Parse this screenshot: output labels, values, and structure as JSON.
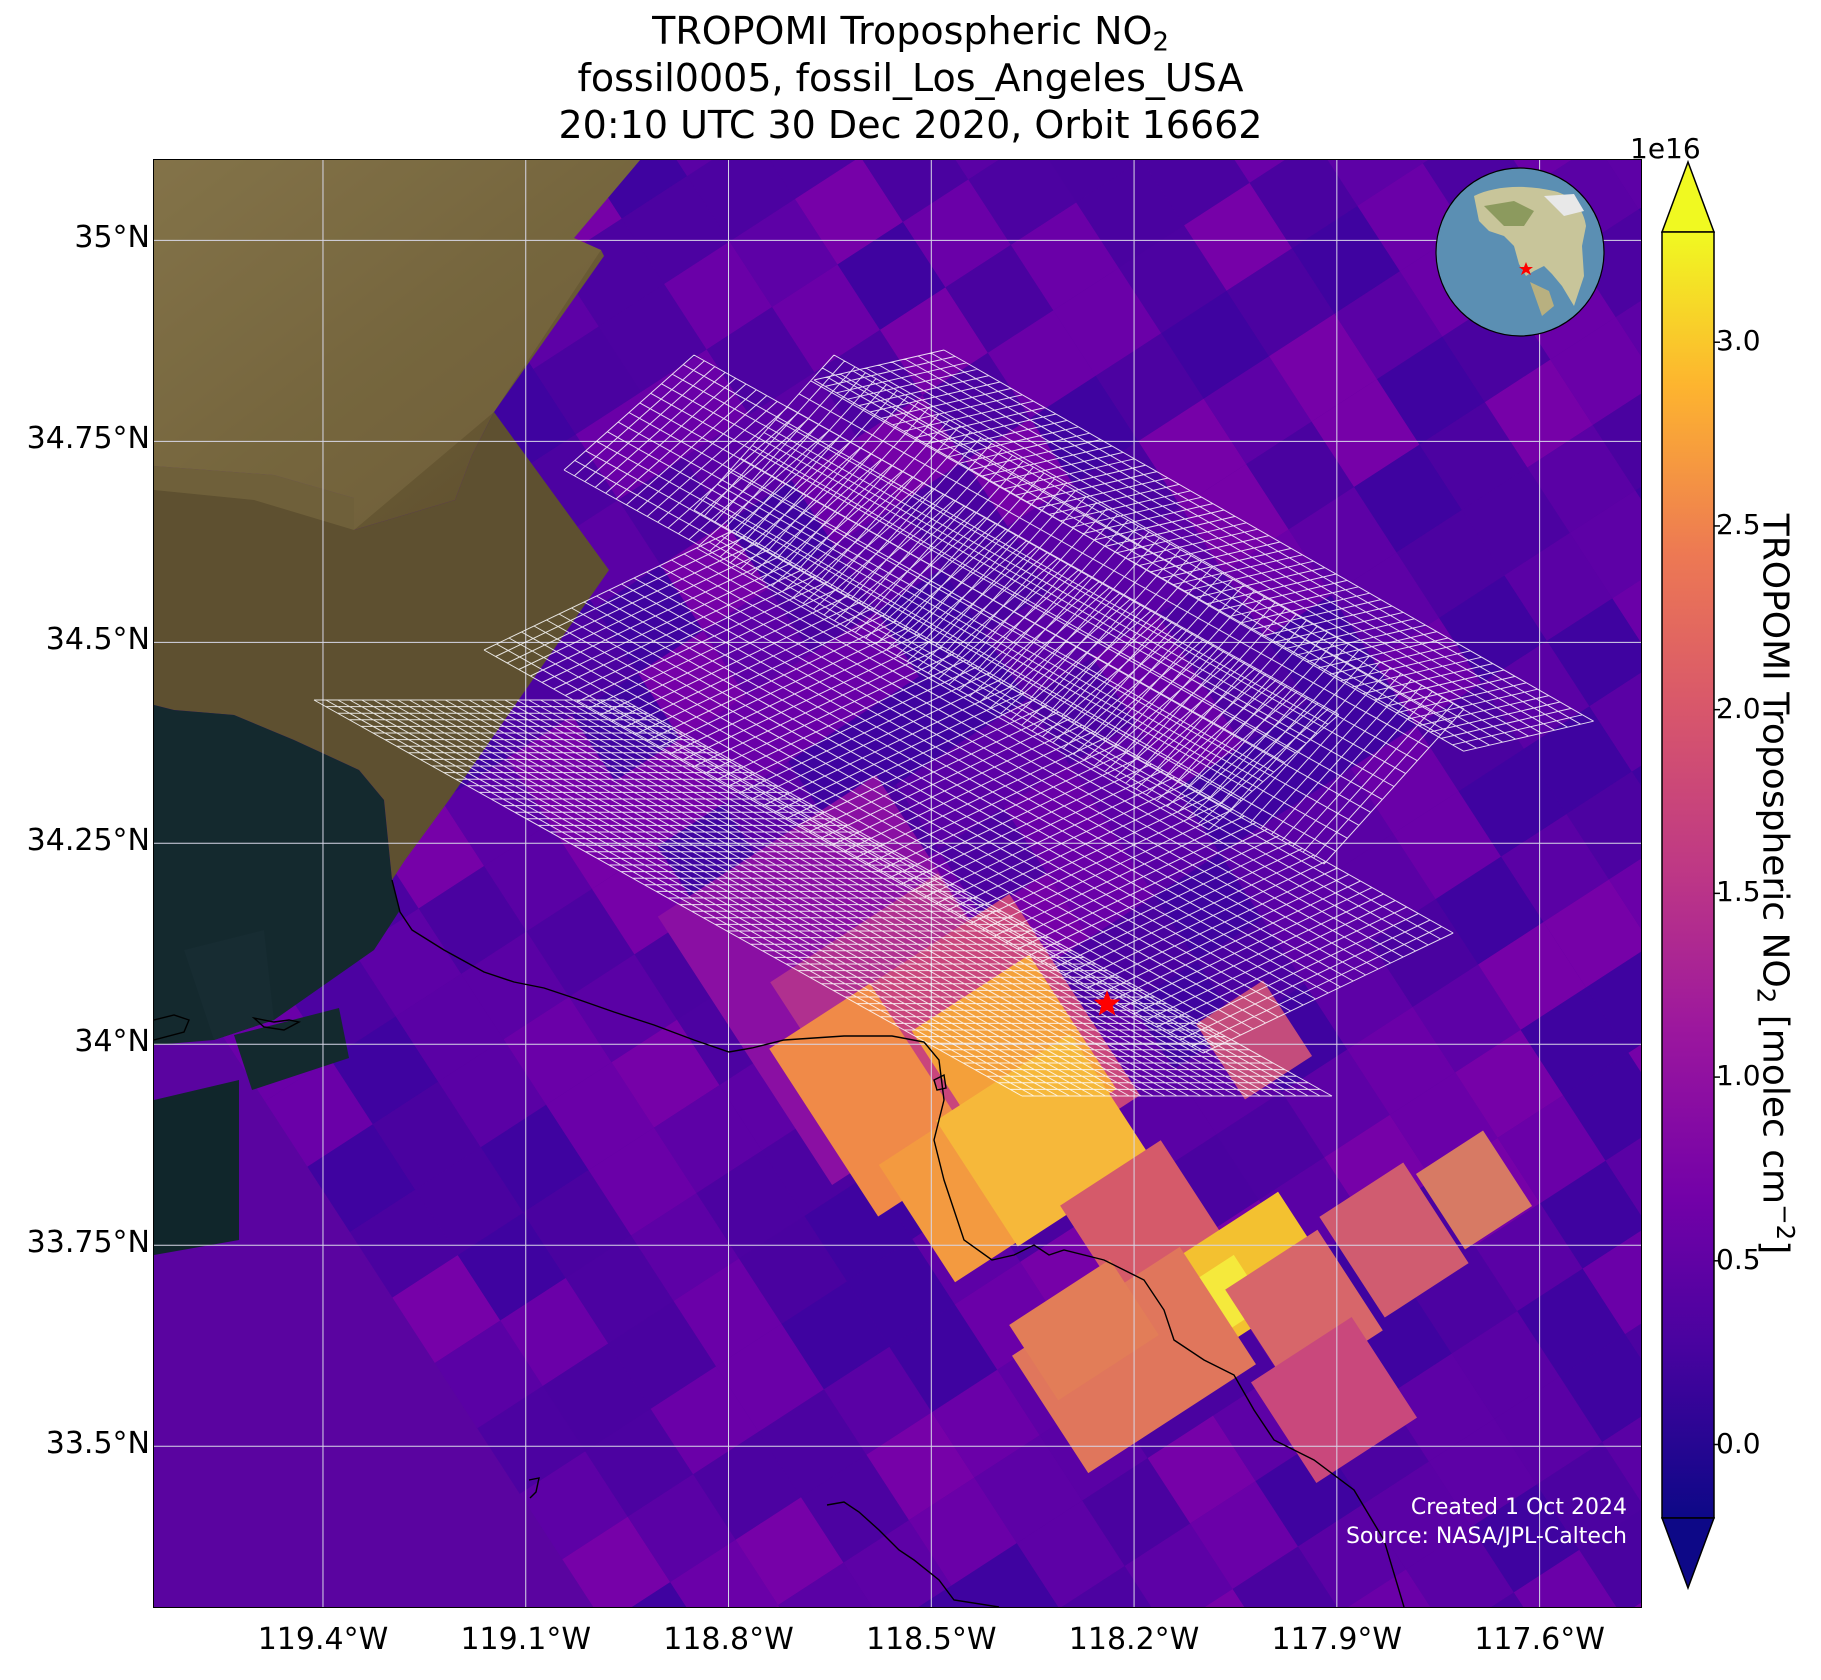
{
  "title": {
    "line1_pre": "TROPOMI Tropospheric NO",
    "line1_sub": "2",
    "line2": "fossil0005, fossil_Los_Angeles_USA",
    "line3": "20:10 UTC 30 Dec 2020, Orbit 16662"
  },
  "map": {
    "lon_range": [
      -119.65,
      -117.45
    ],
    "lat_range": [
      33.3,
      35.1
    ],
    "lat_ticks": [
      "35°N",
      "34.75°N",
      "34.5°N",
      "34.25°N",
      "34°N",
      "33.75°N",
      "33.5°N"
    ],
    "lat_tick_values": [
      35.0,
      34.75,
      34.5,
      34.25,
      34.0,
      33.75,
      33.5
    ],
    "lon_ticks": [
      "119.4°W",
      "119.1°W",
      "118.8°W",
      "118.5°W",
      "118.2°W",
      "117.9°W",
      "117.6°W"
    ],
    "lon_tick_values": [
      -119.4,
      -119.1,
      -118.8,
      -118.5,
      -118.2,
      -117.9,
      -117.6
    ],
    "target_marker": {
      "lon": -118.24,
      "lat": 34.05,
      "color": "#ff0000"
    },
    "gridline_color": "#d8d8e8",
    "credit_line1": "Created 1 Oct 2024",
    "credit_line2": "Source: NASA/JPL-Caltech"
  },
  "colorbar": {
    "exponent_label": "1e16",
    "ticks": [
      "0.0",
      "0.5",
      "1.0",
      "1.5",
      "2.0",
      "2.5",
      "3.0"
    ],
    "tick_values": [
      0.0,
      0.5,
      1.0,
      1.5,
      2.0,
      2.5,
      3.0
    ],
    "range": [
      -0.2,
      3.3
    ],
    "label_pre": "TROPOMI Tropospheric NO",
    "label_sub": "2",
    "label_mid": " [molec cm",
    "label_sup": "−2",
    "label_post": "]",
    "colormap": "plasma",
    "extend": "both"
  }
}
